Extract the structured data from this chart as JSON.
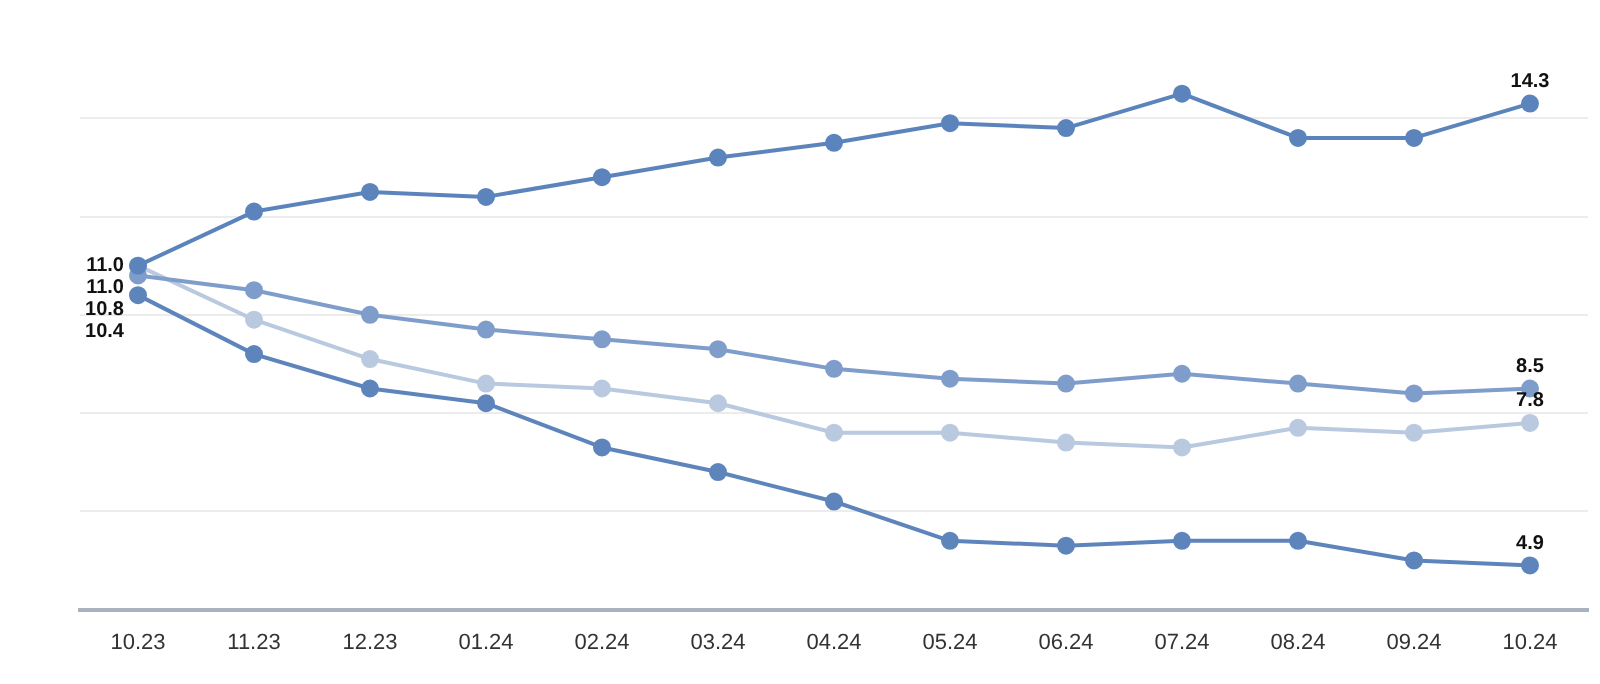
{
  "chart_data": {
    "type": "line",
    "categories": [
      "10.23",
      "11.23",
      "12.23",
      "01.24",
      "02.24",
      "03.24",
      "04.24",
      "05.24",
      "06.24",
      "07.24",
      "08.24",
      "09.24",
      "10.24"
    ],
    "series": [
      {
        "color": "#5b84bd",
        "values": [
          11.0,
          12.1,
          12.5,
          12.4,
          12.8,
          13.2,
          13.5,
          13.9,
          13.8,
          14.5,
          13.6,
          13.6,
          14.3
        ],
        "value_labels": [
          "11.0",
          null,
          null,
          null,
          null,
          null,
          null,
          null,
          null,
          null,
          null,
          null,
          "14.3"
        ]
      },
      {
        "color": "#7f9dcb",
        "values": [
          10.8,
          10.5,
          10.0,
          9.7,
          9.5,
          9.3,
          8.9,
          8.7,
          8.6,
          8.8,
          8.6,
          8.4,
          8.5
        ],
        "value_labels": [
          "10.8",
          null,
          null,
          null,
          null,
          null,
          null,
          null,
          null,
          null,
          null,
          null,
          "8.5"
        ]
      },
      {
        "color": "#b9c9df",
        "values": [
          11.0,
          9.9,
          9.1,
          8.6,
          8.5,
          8.2,
          7.6,
          7.6,
          7.4,
          7.3,
          7.7,
          7.6,
          7.8
        ],
        "value_labels": [
          "11.0",
          null,
          null,
          null,
          null,
          null,
          null,
          null,
          null,
          null,
          null,
          null,
          "7.8"
        ]
      },
      {
        "color": "#5d85bc",
        "values": [
          10.4,
          9.2,
          8.5,
          8.2,
          7.3,
          6.8,
          6.2,
          5.4,
          5.3,
          5.4,
          5.4,
          5.0,
          4.9
        ],
        "value_labels": [
          "10.4",
          null,
          null,
          null,
          null,
          null,
          null,
          null,
          null,
          null,
          null,
          null,
          "4.9"
        ]
      }
    ],
    "yticks": [
      {
        "value": 6,
        "label": null
      },
      {
        "value": 8,
        "label": null
      },
      {
        "value": 10,
        "label": null
      },
      {
        "value": 12,
        "label": null
      },
      {
        "value": 14,
        "label": null
      }
    ],
    "grid": "y",
    "legend": false,
    "tick_labels": "x",
    "marker": "circle",
    "line_style": "solid"
  }
}
